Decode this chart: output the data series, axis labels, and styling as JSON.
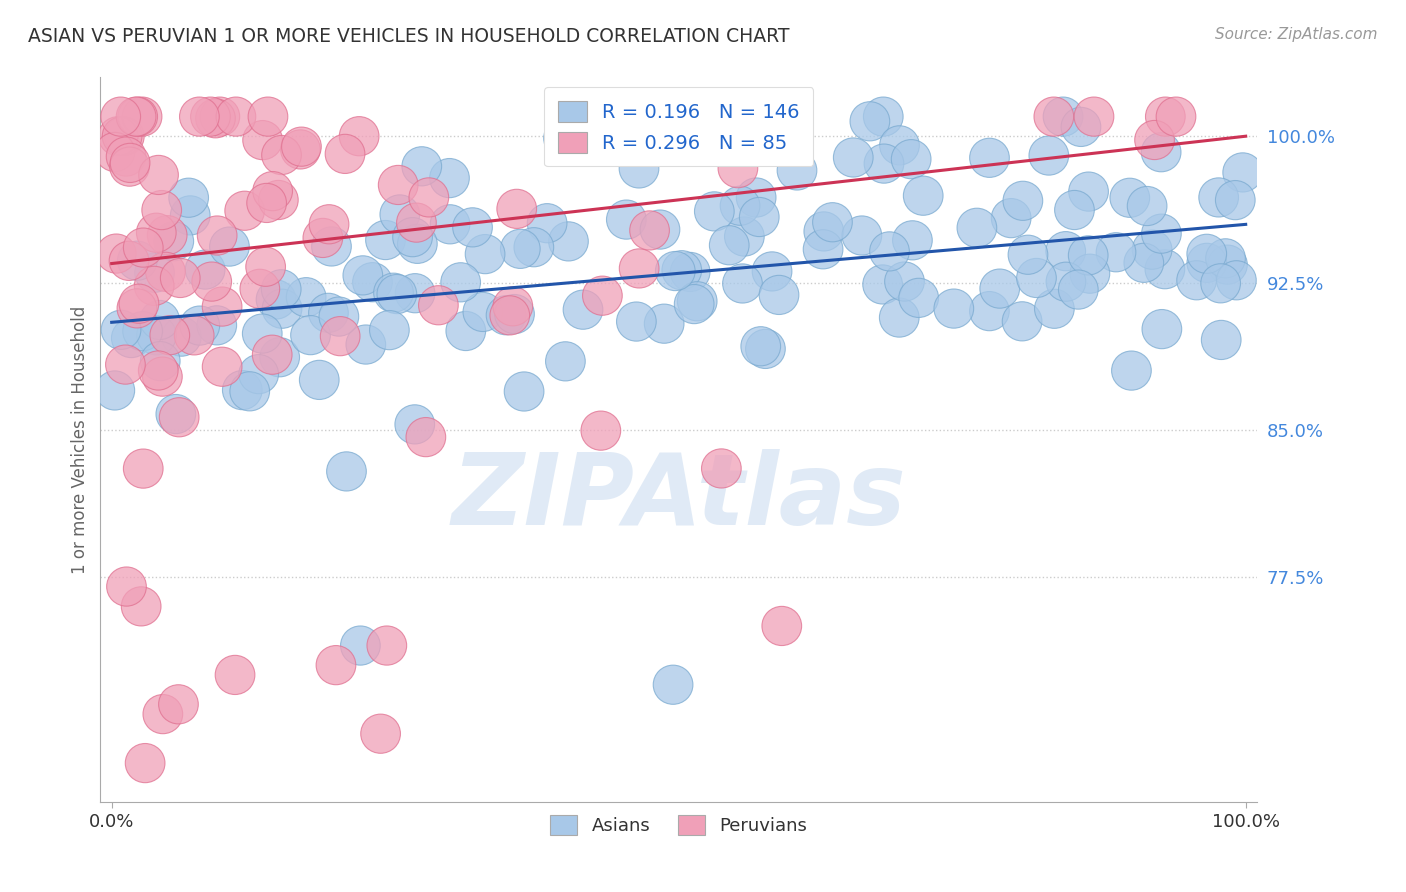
{
  "title": "ASIAN VS PERUVIAN 1 OR MORE VEHICLES IN HOUSEHOLD CORRELATION CHART",
  "source": "Source: ZipAtlas.com",
  "ylabel": "1 or more Vehicles in Household",
  "xlim": [
    -1.0,
    101.0
  ],
  "ylim": [
    66.0,
    103.0
  ],
  "yticks": [
    77.5,
    85.0,
    92.5,
    100.0
  ],
  "xticks": [
    0.0,
    100.0
  ],
  "xticklabels": [
    "0.0%",
    "100.0%"
  ],
  "yticklabels": [
    "77.5%",
    "85.0%",
    "92.5%",
    "100.0%"
  ],
  "asian_color": "#a8c8e8",
  "peruvian_color": "#f0a0b8",
  "asian_edge_color": "#7aaad0",
  "peruvian_edge_color": "#e07090",
  "asian_line_color": "#2255aa",
  "peruvian_line_color": "#cc3355",
  "ytick_color": "#4488dd",
  "xtick_color": "#333333",
  "grid_color": "#cccccc",
  "title_color": "#333333",
  "source_color": "#999999",
  "ylabel_color": "#666666",
  "legend_R_asian": "0.196",
  "legend_N_asian": "146",
  "legend_R_peruvian": "0.296",
  "legend_N_peruvian": "85",
  "legend_text_color": "#2266cc",
  "watermark": "ZIPAtlas",
  "watermark_color": "#ccddf0",
  "asian_line_start_y": 90.5,
  "asian_line_end_y": 95.5,
  "peruvian_line_start_y": 93.5,
  "peruvian_line_end_y": 100.0
}
